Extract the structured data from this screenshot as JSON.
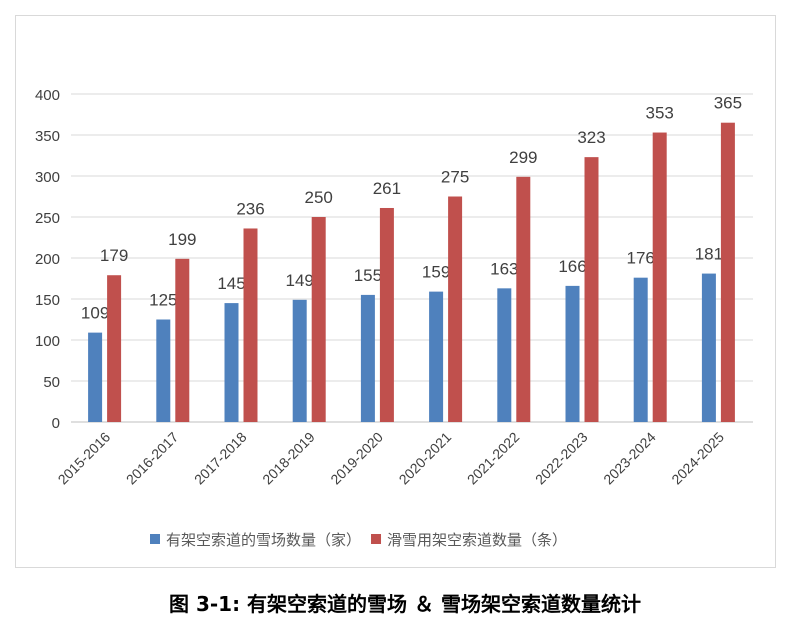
{
  "chart_data": {
    "type": "bar",
    "title": "图 3-1: 有架空索道的雪场 ＆ 雪场架空索道数量统计",
    "categories": [
      "2015-2016",
      "2016-2017",
      "2017-2018",
      "2018-2019",
      "2019-2020",
      "2020-2021",
      "2021-2022",
      "2022-2023",
      "2023-2024",
      "2024-2025"
    ],
    "series": [
      {
        "name": "有架空索道的雪场数量（家）",
        "color": "#4F81BD",
        "values": [
          109,
          125,
          145,
          149,
          155,
          159,
          163,
          166,
          176,
          181
        ]
      },
      {
        "name": "滑雪用架空索道数量（条）",
        "color": "#C0504D",
        "values": [
          179,
          199,
          236,
          250,
          261,
          275,
          299,
          323,
          353,
          365
        ]
      }
    ],
    "ylim": [
      0,
      400
    ],
    "yticks": [
      0,
      50,
      100,
      150,
      200,
      250,
      300,
      350,
      400
    ],
    "grid": true,
    "legend": "bottom"
  }
}
